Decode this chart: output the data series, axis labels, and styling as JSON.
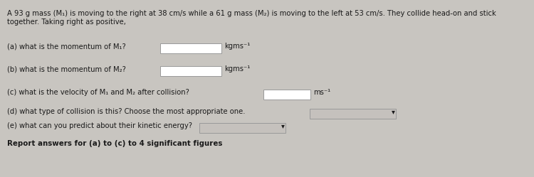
{
  "bg_color": "#c8c5c0",
  "text_color": "#1a1a1a",
  "title_line1": "A 93 g mass (M₁) is moving to the right at 38 cm/s while a 61 g mass (M₂) is moving to the left at 53 cm/s. They collide head-on and stick",
  "title_line2": "together. Taking right as positive,",
  "q_a": "(a) what is the momentum of M₁?",
  "q_a_unit": "kgms⁻¹",
  "q_b": "(b) what is the momentum of M₂?",
  "q_b_unit": "kgms⁻¹",
  "q_c": "(c) what is the velocity of M₁ and M₂ after collision?",
  "q_c_unit": "ms⁻¹",
  "q_d": "(d) what type of collision is this? Choose the most appropriate one.",
  "q_e": "(e) what can you predict about their kinetic energy?",
  "footer": "Report answers for (a) to (c) to 4 significant figures",
  "box_facecolor": "#cac6c2",
  "box_border": "#999999",
  "dropdown_facecolor": "#c5c1bd",
  "fontsize": 7.2,
  "footer_fontsize": 7.4
}
